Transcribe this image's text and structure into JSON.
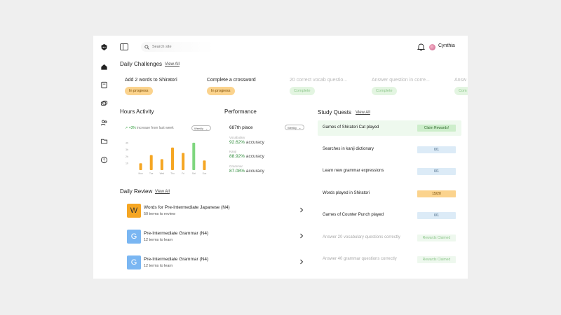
{
  "header": {
    "search_placeholder": "Search site",
    "user_name": "Cynthia"
  },
  "sidebar": {
    "items": [
      "home-icon",
      "book-icon",
      "chat-icon",
      "users-icon",
      "folder-icon",
      "help-icon"
    ]
  },
  "daily_challenges": {
    "title": "Daily Challenges",
    "view_all": "View All",
    "items": [
      {
        "title": "Add 2 words to Shiratori",
        "status": "In progress"
      },
      {
        "title": "Complete a crossword",
        "status": "In progress"
      },
      {
        "title": "20 correct vocab questio...",
        "status": "Complete"
      },
      {
        "title": "Answer question in corre...",
        "status": "Complete"
      },
      {
        "title": "Answ",
        "status": "Com"
      }
    ]
  },
  "hours_activity": {
    "title": "Hours Activity",
    "trend_value": "+3%",
    "trend_text": "increase from last week",
    "dropdown": "Weekly"
  },
  "chart_data": {
    "type": "bar",
    "categories": [
      "Mon",
      "Tue",
      "Wed",
      "Thu",
      "Fri",
      "Sat",
      "Sun"
    ],
    "values": [
      1.0,
      2.2,
      1.6,
      3.3,
      2.5,
      4.0,
      1.4
    ],
    "ytick_labels": [
      "4h",
      "3h",
      "2h",
      "1h"
    ],
    "ylim": [
      0,
      4.5
    ],
    "highlight_index": 5,
    "colors": {
      "bar": "#f5a623",
      "highlight": "#7ed67e"
    }
  },
  "performance": {
    "title": "Performance",
    "rank": "687th place",
    "dropdown": "Weekly",
    "items": [
      {
        "label": "Vocabulary",
        "value": "92.62%",
        "suffix": "accuracy"
      },
      {
        "label": "Kanji",
        "value": "88.92%",
        "suffix": "accuracy"
      },
      {
        "label": "Grammar",
        "value": "87.08%",
        "suffix": "accuracy"
      }
    ]
  },
  "daily_review": {
    "title": "Daily Review",
    "view_all": "View All",
    "items": [
      {
        "badge": "W",
        "title": "Words for Pre-Intermediate Japanese (N4)",
        "subtitle": "50 terms to review"
      },
      {
        "badge": "G",
        "title": "Pre-Intermediate Grammar (N4)",
        "subtitle": "12 terms to learn"
      },
      {
        "badge": "G",
        "title": "Pre-Intermediate Grammar (N4)",
        "subtitle": "12 terms to learn"
      }
    ]
  },
  "study_quests": {
    "title": "Study Quests",
    "view_all": "View All",
    "items": [
      {
        "title": "Games of Shiratori Cat played",
        "status": "Claim Rewards!"
      },
      {
        "title": "Searches in kanji dictionary",
        "status": "0/1"
      },
      {
        "title": "Learn new grammar expressions",
        "status": "0/1"
      },
      {
        "title": "Words played in Shiratori",
        "status": "15/20"
      },
      {
        "title": "Games of Counter Punch played",
        "status": "0/1"
      },
      {
        "title": "Answer 20 vocabulary questions correctly",
        "status": "Rewards Claimed"
      },
      {
        "title": "Answer 40 grammar questions correctly",
        "status": "Rewards Claimed"
      }
    ]
  }
}
